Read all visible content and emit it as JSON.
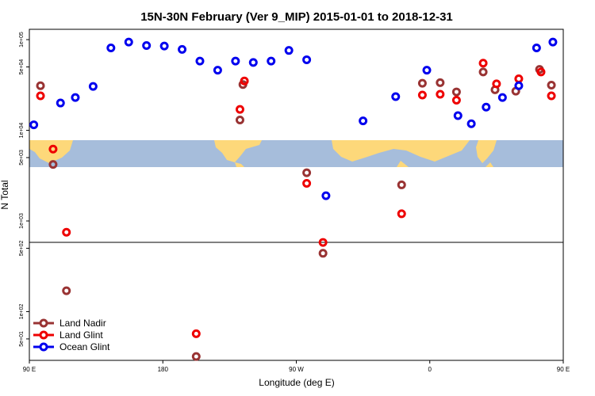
{
  "chart_data": {
    "type": "scatter",
    "title": "15N-30N February (Ver 9_MIP)   2015-01-01 to 2018-12-31",
    "xlabel": "Longitude (deg E)",
    "ylabel": "N Total",
    "y_scale": "log",
    "xlim": [
      90,
      450
    ],
    "ylim": [
      29,
      130000
    ],
    "x_ticks": [
      {
        "value": 90,
        "label": "90 E"
      },
      {
        "value": 180,
        "label": "180"
      },
      {
        "value": 270,
        "label": "90 W"
      },
      {
        "value": 360,
        "label": "0"
      },
      {
        "value": 450,
        "label": "90 E"
      },
      {
        "value": 540,
        "label": "180"
      }
    ],
    "y_ticks": [
      {
        "value": 50,
        "label": "5e+01"
      },
      {
        "value": 100,
        "label": "1e+02"
      },
      {
        "value": 500,
        "label": "5e+02"
      },
      {
        "value": 1000,
        "label": "1e+03"
      },
      {
        "value": 5000,
        "label": "5e+03"
      },
      {
        "value": 10000,
        "label": "1e+04"
      },
      {
        "value": 50000,
        "label": "5e+04"
      },
      {
        "value": 100000,
        "label": "1e+05"
      }
    ],
    "legend_position": "bottom-left",
    "series": [
      {
        "name": "Land Nadir",
        "color": "#993333",
        "points": [
          {
            "x": 97.5,
            "y": 31000
          },
          {
            "x": 106,
            "y": 4200
          },
          {
            "x": 115,
            "y": 170
          },
          {
            "x": 202.5,
            "y": 32
          },
          {
            "x": 234,
            "y": 32000
          },
          {
            "x": 232,
            "y": 13000
          },
          {
            "x": 277,
            "y": 3400
          },
          {
            "x": 288,
            "y": 440
          },
          {
            "x": 341,
            "y": 2500
          },
          {
            "x": 355,
            "y": 33000
          },
          {
            "x": 367,
            "y": 33500
          },
          {
            "x": 378,
            "y": 26500
          },
          {
            "x": 396,
            "y": 44000
          },
          {
            "x": 404,
            "y": 28000
          },
          {
            "x": 418,
            "y": 27000
          },
          {
            "x": 434,
            "y": 47000
          },
          {
            "x": 442,
            "y": 31500
          },
          {
            "x": 477,
            "y": 4300
          },
          {
            "x": 488,
            "y": 170
          }
        ]
      },
      {
        "name": "Land Glint",
        "color": "#ee0000",
        "points": [
          {
            "x": 97.5,
            "y": 24000
          },
          {
            "x": 106,
            "y": 6200
          },
          {
            "x": 115,
            "y": 750
          },
          {
            "x": 202.5,
            "y": 57
          },
          {
            "x": 235,
            "y": 35000
          },
          {
            "x": 232,
            "y": 17000
          },
          {
            "x": 277,
            "y": 2600
          },
          {
            "x": 288,
            "y": 580
          },
          {
            "x": 341,
            "y": 1200
          },
          {
            "x": 355,
            "y": 24500
          },
          {
            "x": 367,
            "y": 25000
          },
          {
            "x": 378,
            "y": 21500
          },
          {
            "x": 396,
            "y": 55000
          },
          {
            "x": 405,
            "y": 32500
          },
          {
            "x": 420,
            "y": 37000
          },
          {
            "x": 435,
            "y": 44000
          },
          {
            "x": 442,
            "y": 24000
          },
          {
            "x": 477,
            "y": 6200
          },
          {
            "x": 488,
            "y": 750
          }
        ]
      },
      {
        "name": "Ocean Glint",
        "color": "#0000ee",
        "points": [
          {
            "x": 93,
            "y": 11500
          },
          {
            "x": 111,
            "y": 20000
          },
          {
            "x": 121,
            "y": 23000
          },
          {
            "x": 133,
            "y": 30500
          },
          {
            "x": 145,
            "y": 81000
          },
          {
            "x": 157,
            "y": 94000
          },
          {
            "x": 169,
            "y": 86000
          },
          {
            "x": 181,
            "y": 85000
          },
          {
            "x": 193,
            "y": 78000
          },
          {
            "x": 205,
            "y": 58000
          },
          {
            "x": 217,
            "y": 46000
          },
          {
            "x": 229,
            "y": 58000
          },
          {
            "x": 241,
            "y": 56000
          },
          {
            "x": 253,
            "y": 58000
          },
          {
            "x": 265,
            "y": 76000
          },
          {
            "x": 277,
            "y": 60000
          },
          {
            "x": 290,
            "y": 1900
          },
          {
            "x": 315,
            "y": 12700
          },
          {
            "x": 337,
            "y": 23500
          },
          {
            "x": 358,
            "y": 46000
          },
          {
            "x": 379,
            "y": 14500
          },
          {
            "x": 388,
            "y": 11800
          },
          {
            "x": 398,
            "y": 18000
          },
          {
            "x": 409,
            "y": 23000
          },
          {
            "x": 420,
            "y": 31000
          },
          {
            "x": 432,
            "y": 81000
          },
          {
            "x": 443,
            "y": 94000
          }
        ]
      }
    ],
    "background": {
      "map_ocean_color": "#a6bddb",
      "map_land_color": "#fdd87a"
    }
  }
}
